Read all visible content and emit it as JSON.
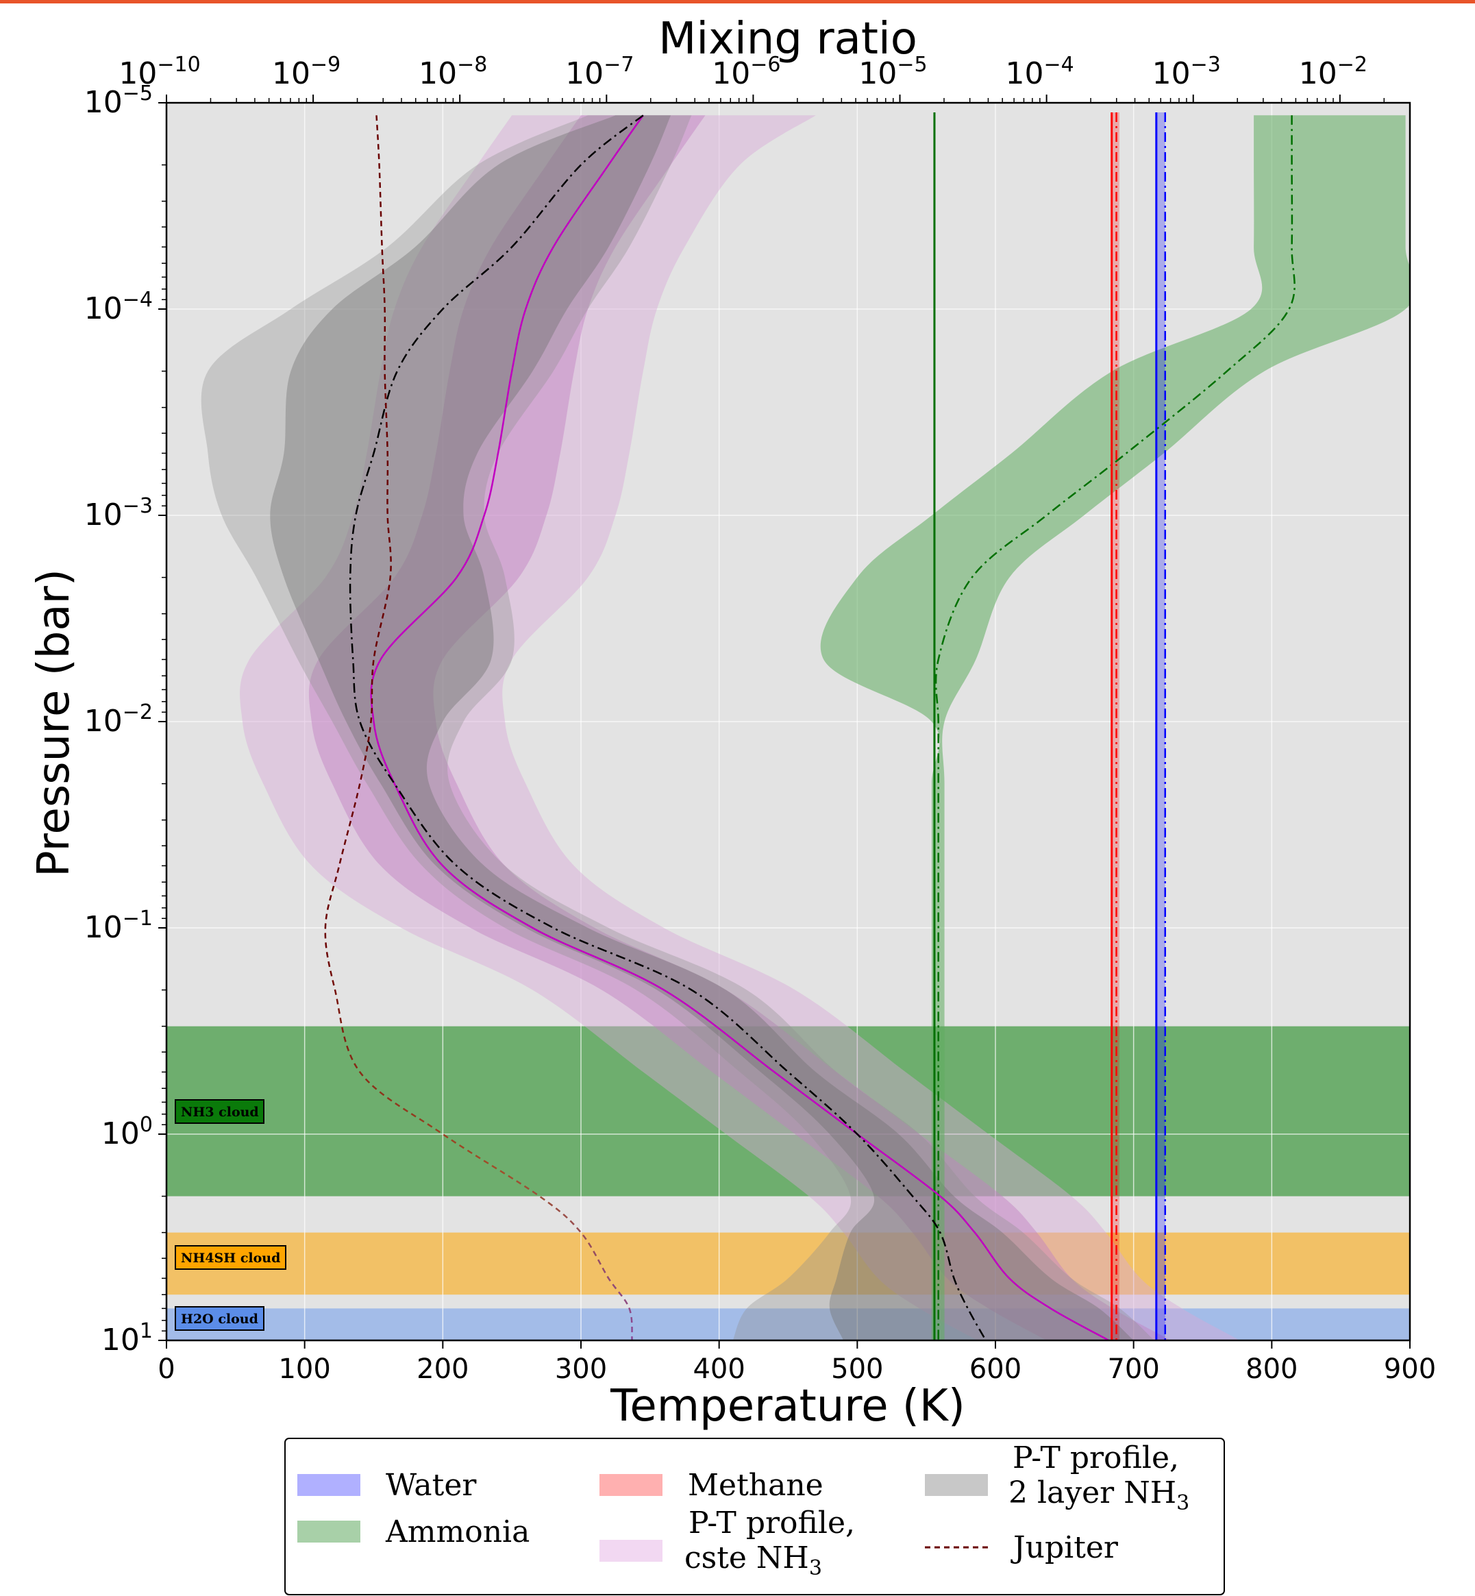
{
  "colors": {
    "page_accent": "#e8542a",
    "background": "#e3e3e3",
    "water": "#0000ff",
    "methane": "#ff0000",
    "ammonia": "#007000",
    "ammonia_band": "#60ad60",
    "pt_2layer": "#000000",
    "pt_cste": "#c000c0",
    "jupiter_top": "#6a0000",
    "jupiter_bottom": "#7a3a8a",
    "nh3_cloud": "#1f8a1f",
    "nh4sh_cloud": "#ffa500",
    "h2o_cloud": "#6495ed"
  },
  "chart_data": {
    "type": "line",
    "xlabel": "Temperature (K)",
    "ylabel": "Pressure (bar)",
    "top_xlabel": "Mixing ratio",
    "xlim": [
      0,
      900
    ],
    "ylim": [
      10,
      1e-05
    ],
    "yscale": "log",
    "top_xscale": "log",
    "top_xlim": [
      1e-10,
      0.03
    ],
    "grid": true,
    "legend_position": "bottom",
    "x_ticks": [
      "0",
      "100",
      "200",
      "300",
      "400",
      "500",
      "600",
      "700",
      "800",
      "900"
    ],
    "y_ticks": [
      {
        "base": "10",
        "exp": "−5"
      },
      {
        "base": "10",
        "exp": "−4"
      },
      {
        "base": "10",
        "exp": "−3"
      },
      {
        "base": "10",
        "exp": "−2"
      },
      {
        "base": "10",
        "exp": "−1"
      },
      {
        "base": "10",
        "exp": "0"
      },
      {
        "base": "10",
        "exp": "1"
      }
    ],
    "top_ticks": [
      {
        "base": "10",
        "exp": "−10"
      },
      {
        "base": "10",
        "exp": "−9"
      },
      {
        "base": "10",
        "exp": "−8"
      },
      {
        "base": "10",
        "exp": "−7"
      },
      {
        "base": "10",
        "exp": "−6"
      },
      {
        "base": "10",
        "exp": "−5"
      },
      {
        "base": "10",
        "exp": "−4"
      },
      {
        "base": "10",
        "exp": "−3"
      },
      {
        "base": "10",
        "exp": "−2"
      }
    ],
    "clouds": [
      {
        "label": "NH3 cloud",
        "p_top": 0.3,
        "p_bottom": 2.0
      },
      {
        "label": "NH4SH cloud",
        "p_top": 3.0,
        "p_bottom": 6.0
      },
      {
        "label": "H2O cloud",
        "p_top": 7.0,
        "p_bottom": 10.0
      }
    ],
    "pressure_grid": [
      1.15e-05,
      2e-05,
      5e-05,
      0.0001,
      0.0002,
      0.0005,
      0.001,
      0.002,
      0.005,
      0.01,
      0.02,
      0.05,
      0.1,
      0.2,
      0.5,
      1,
      2,
      3,
      5,
      7,
      10
    ],
    "series": [
      {
        "name": "P-T profile,\n 2 layer NH3",
        "unit": "K",
        "median": [
          345,
          300,
          250,
          200,
          167,
          150,
          137,
          133,
          135,
          140,
          165,
          210,
          280,
          380,
          450,
          500,
          540,
          560,
          570,
          580,
          593
        ],
        "inner": {
          "lo": [
            325,
            240,
            180,
            120,
            90,
            85,
            75,
            85,
            110,
            130,
            155,
            195,
            260,
            355,
            430,
            480,
            512,
            495,
            485,
            480,
            490
          ],
          "hi": [
            365,
            350,
            320,
            290,
            265,
            225,
            215,
            230,
            235,
            200,
            190,
            230,
            305,
            405,
            470,
            530,
            570,
            605,
            640,
            675,
            700
          ]
        },
        "outer": {
          "lo": [
            305,
            225,
            160,
            90,
            30,
            30,
            40,
            65,
            95,
            120,
            145,
            185,
            245,
            340,
            415,
            465,
            495,
            480,
            450,
            420,
            410
          ]
        }
      },
      {
        "name": "P-T profile,\n cste NH3",
        "unit": "K",
        "median": [
          345,
          320,
          280,
          260,
          250,
          240,
          230,
          210,
          155,
          150,
          165,
          200,
          265,
          360,
          440,
          500,
          560,
          585,
          610,
          640,
          682
        ]
      },
      {
        "name": "Jupiter",
        "unit": "K",
        "median": [
          152,
          154,
          156,
          158,
          158,
          160,
          160,
          162,
          150,
          148,
          140,
          125,
          115,
          122,
          140,
          200,
          270,
          300,
          320,
          335,
          337
        ]
      },
      {
        "name": "Water",
        "unit": "mixing ratio",
        "values": [
          0.000585,
          0.000585,
          0.000585,
          0.000585,
          0.000585,
          0.000585,
          0.000585,
          0.000585,
          0.000585,
          0.000585,
          0.000585,
          0.000585,
          0.000585,
          0.000585,
          0.000585,
          0.000585,
          0.000585,
          0.000585,
          0.000585,
          0.000585,
          0.000585
        ]
      },
      {
        "name": "Methane",
        "unit": "mixing ratio",
        "values": [
          0.000285,
          0.000285,
          0.000285,
          0.000285,
          0.000285,
          0.000285,
          0.000285,
          0.000285,
          0.000285,
          0.000285,
          0.000285,
          0.000285,
          0.000285,
          0.000285,
          0.000285,
          0.000285,
          0.000285,
          0.000285,
          0.000285,
          0.000285,
          0.000285
        ]
      },
      {
        "name": "Ammonia",
        "unit": "mixing ratio",
        "values": [
          0.0047,
          0.0047,
          0.0047,
          0.0045,
          0.0017,
          0.00035,
          0.0001,
          3.1e-05,
          1.83e-05,
          1.83e-05,
          1.83e-05,
          1.83e-05,
          1.83e-05,
          1.83e-05,
          1.83e-05,
          1.83e-05,
          1.83e-05,
          1.83e-05,
          1.83e-05,
          1.83e-05,
          1.83e-05
        ]
      }
    ]
  },
  "legend": [
    {
      "label": "Water",
      "sub": ""
    },
    {
      "label": "Ammonia",
      "sub": ""
    },
    {
      "label": "Methane",
      "sub": ""
    },
    {
      "label": "P-T profile,",
      "line2": " cste NH",
      "sub": "3"
    },
    {
      "label": "P-T profile,",
      "line2": " 2 layer NH",
      "sub": "3"
    },
    {
      "label": "Jupiter",
      "sub": ""
    }
  ]
}
